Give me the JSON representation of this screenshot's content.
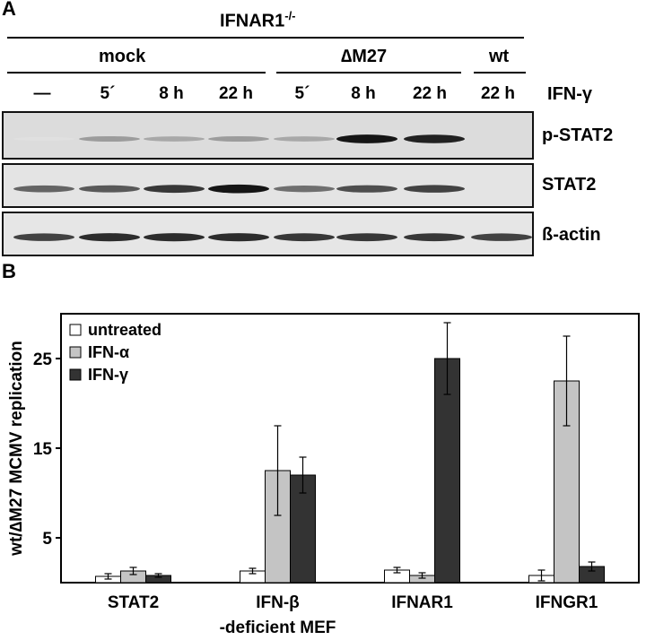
{
  "panel_a": {
    "letter": "A",
    "genotype": "IFNAR1",
    "genotype_sup": "-/-",
    "groups": [
      "mock",
      "∆M27",
      "wt"
    ],
    "lanes": [
      "—",
      "5´",
      "8 h",
      "22 h",
      "5´",
      "8 h",
      "22 h",
      "22 h"
    ],
    "treatment_label": "IFN-γ",
    "blots": [
      {
        "label": "p-STAT2",
        "intensities": [
          0.05,
          0.35,
          0.3,
          0.35,
          0.3,
          0.95,
          0.9,
          0.0
        ]
      },
      {
        "label": "STAT2",
        "intensities": [
          0.6,
          0.65,
          0.8,
          0.95,
          0.55,
          0.7,
          0.75,
          0.0
        ]
      },
      {
        "label": "ß-actin",
        "intensities": [
          0.75,
          0.85,
          0.85,
          0.85,
          0.8,
          0.8,
          0.8,
          0.75
        ]
      }
    ]
  },
  "panel_b": {
    "letter": "B",
    "chart_data": {
      "type": "bar",
      "categories": [
        "STAT2",
        "IFN-β",
        "IFNAR1",
        "IFNGR1"
      ],
      "xlabel_line2": "-deficient MEF",
      "ylabel": "wt/∆M27 MCMV replication",
      "ylim": [
        0,
        30
      ],
      "yticks": [
        5,
        15,
        25
      ],
      "series": [
        {
          "name": "untreated",
          "color": "#ffffff",
          "values": [
            0.7,
            1.3,
            1.4,
            0.8
          ],
          "errors": [
            0.3,
            0.3,
            0.3,
            0.6
          ]
        },
        {
          "name": "IFN-α",
          "color": "#c4c4c4",
          "values": [
            1.3,
            12.5,
            0.8,
            22.5
          ],
          "errors": [
            0.4,
            5.0,
            0.3,
            5.0
          ]
        },
        {
          "name": "IFN-γ",
          "color": "#333333",
          "values": [
            0.8,
            12.0,
            25.0,
            1.8
          ],
          "errors": [
            0.2,
            2.0,
            4.0,
            0.5
          ]
        }
      ],
      "legend_position": "top-left"
    }
  }
}
